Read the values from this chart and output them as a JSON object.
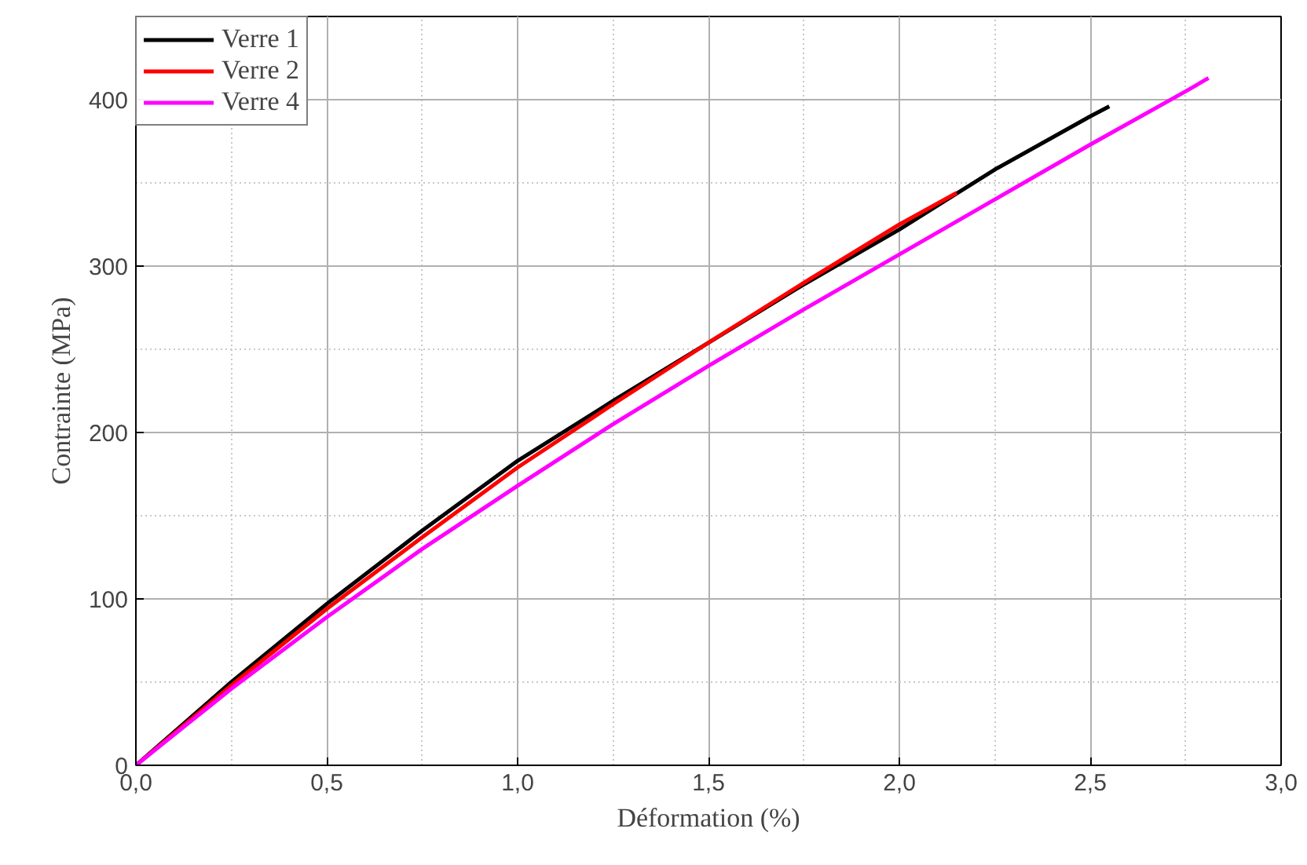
{
  "chart_data": {
    "type": "line",
    "xlabel": "Déformation (%)",
    "ylabel": "Contrainte (MPa)",
    "xlim": [
      0,
      3
    ],
    "ylim": [
      0,
      450
    ],
    "xticks": [
      {
        "value": 0,
        "label": "0,0"
      },
      {
        "value": 0.5,
        "label": "0,5"
      },
      {
        "value": 1,
        "label": "1,0"
      },
      {
        "value": 1.5,
        "label": "1,5"
      },
      {
        "value": 2,
        "label": "2,0"
      },
      {
        "value": 2.5,
        "label": "2,5"
      },
      {
        "value": 3,
        "label": "3,0"
      }
    ],
    "yticks": [
      0,
      100,
      200,
      300,
      400
    ],
    "grid": true,
    "legend": "top left",
    "line_style": "solid",
    "series": [
      {
        "name": "Verre 1",
        "color": "#000000",
        "x": [
          0,
          0.25,
          0.5,
          0.75,
          1.0,
          1.25,
          1.5,
          1.75,
          2.0,
          2.25,
          2.5,
          2.55
        ],
        "values": [
          0,
          50,
          97,
          141,
          183,
          219,
          254,
          289,
          322,
          358,
          390,
          396
        ]
      },
      {
        "name": "Verre 2",
        "color": "#ff0000",
        "x": [
          0,
          0.25,
          0.5,
          0.75,
          1.0,
          1.25,
          1.5,
          1.75,
          2.0,
          2.15
        ],
        "values": [
          0,
          48,
          94,
          137,
          179,
          217,
          254,
          290,
          325,
          344
        ]
      },
      {
        "name": "Verre 4",
        "color": "#ff00ff",
        "x": [
          0,
          0.25,
          0.5,
          0.75,
          1.0,
          1.25,
          1.5,
          1.75,
          2.0,
          2.25,
          2.5,
          2.75,
          2.81
        ],
        "values": [
          0,
          46,
          89,
          130,
          168,
          205,
          240,
          274,
          307,
          340,
          373,
          405,
          413
        ]
      }
    ]
  }
}
